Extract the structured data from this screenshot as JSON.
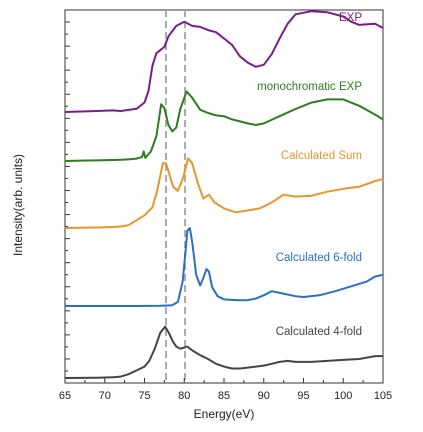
{
  "chart_data": {
    "type": "line",
    "xlabel": "Energy(eV)",
    "ylabel": "Intensity(arb. units)",
    "xlim": [
      65,
      105
    ],
    "xticks": [
      65,
      70,
      75,
      80,
      85,
      90,
      95,
      100,
      105
    ],
    "y_tick_labels_shown": false,
    "grid": false,
    "reference_lines_x": [
      77.7,
      80.1
    ],
    "reference_line_color": "#aaaaaa",
    "stacked_offsets": true,
    "series": [
      {
        "name": "EXP",
        "color": "#7a1d8c",
        "baseline": 0.0,
        "points": [
          [
            65,
            0.0
          ],
          [
            67,
            0.005
          ],
          [
            69,
            0.01
          ],
          [
            71,
            0.015
          ],
          [
            72,
            0.01
          ],
          [
            73,
            0.02
          ],
          [
            74,
            0.03
          ],
          [
            75,
            0.09
          ],
          [
            75.5,
            0.2
          ],
          [
            76,
            0.44
          ],
          [
            76.5,
            0.56
          ],
          [
            77,
            0.59
          ],
          [
            77.5,
            0.62
          ],
          [
            78,
            0.72
          ],
          [
            78.5,
            0.77
          ],
          [
            79,
            0.82
          ],
          [
            80,
            0.86
          ],
          [
            81,
            0.82
          ],
          [
            82,
            0.81
          ],
          [
            83,
            0.78
          ],
          [
            84,
            0.76
          ],
          [
            85,
            0.7
          ],
          [
            86,
            0.64
          ],
          [
            87,
            0.53
          ],
          [
            88,
            0.47
          ],
          [
            89,
            0.43
          ],
          [
            90,
            0.45
          ],
          [
            91,
            0.55
          ],
          [
            92,
            0.7
          ],
          [
            93,
            0.84
          ],
          [
            94,
            0.93
          ],
          [
            96,
            0.96
          ],
          [
            98,
            0.95
          ],
          [
            100,
            0.91
          ],
          [
            101,
            0.86
          ],
          [
            102,
            0.83
          ],
          [
            104,
            0.84
          ],
          [
            105,
            0.8
          ]
        ]
      },
      {
        "name": "monochromatic EXP",
        "color": "#2e7d1e",
        "baseline": 0.0,
        "points": [
          [
            65,
            0.0
          ],
          [
            67,
            0.005
          ],
          [
            69,
            0.008
          ],
          [
            71,
            0.012
          ],
          [
            72,
            0.015
          ],
          [
            73,
            0.02
          ],
          [
            74,
            0.03
          ],
          [
            74.7,
            0.05
          ],
          [
            74.9,
            0.12
          ],
          [
            75.1,
            0.04
          ],
          [
            75.8,
            0.12
          ],
          [
            76.5,
            0.31
          ],
          [
            77.1,
            0.71
          ],
          [
            77.5,
            0.66
          ],
          [
            78,
            0.45
          ],
          [
            78.5,
            0.37
          ],
          [
            79,
            0.42
          ],
          [
            79.5,
            0.65
          ],
          [
            80.3,
            0.87
          ],
          [
            81,
            0.79
          ],
          [
            82,
            0.64
          ],
          [
            83,
            0.6
          ],
          [
            84,
            0.57
          ],
          [
            85,
            0.56
          ],
          [
            86,
            0.52
          ],
          [
            88,
            0.47
          ],
          [
            89,
            0.45
          ],
          [
            90,
            0.47
          ],
          [
            92,
            0.56
          ],
          [
            94,
            0.65
          ],
          [
            96,
            0.73
          ],
          [
            98,
            0.77
          ],
          [
            100,
            0.77
          ],
          [
            102,
            0.69
          ],
          [
            104,
            0.58
          ],
          [
            105,
            0.52
          ]
        ]
      },
      {
        "name": "Calculated Sum",
        "color": "#e8962a",
        "baseline": 0.0,
        "points": [
          [
            65,
            0.0
          ],
          [
            67,
            0.002
          ],
          [
            69,
            0.005
          ],
          [
            70,
            0.008
          ],
          [
            71,
            0.01
          ],
          [
            72,
            0.015
          ],
          [
            73,
            0.03
          ],
          [
            74,
            0.08
          ],
          [
            75,
            0.13
          ],
          [
            76,
            0.21
          ],
          [
            76.6,
            0.38
          ],
          [
            77.3,
            0.66
          ],
          [
            77.7,
            0.66
          ],
          [
            78.1,
            0.56
          ],
          [
            78.6,
            0.42
          ],
          [
            79.2,
            0.38
          ],
          [
            79.8,
            0.5
          ],
          [
            80.5,
            0.71
          ],
          [
            81,
            0.66
          ],
          [
            81.7,
            0.46
          ],
          [
            82.4,
            0.3
          ],
          [
            83.1,
            0.34
          ],
          [
            83.8,
            0.26
          ],
          [
            85,
            0.2
          ],
          [
            86.5,
            0.16
          ],
          [
            88,
            0.18
          ],
          [
            89.5,
            0.2
          ],
          [
            91,
            0.26
          ],
          [
            92.5,
            0.34
          ],
          [
            94,
            0.32
          ],
          [
            96,
            0.33
          ],
          [
            98,
            0.37
          ],
          [
            100,
            0.4
          ],
          [
            102,
            0.42
          ],
          [
            104,
            0.48
          ],
          [
            105,
            0.5
          ]
        ]
      },
      {
        "name": "Calculated 6-fold",
        "color": "#2b6fc2",
        "baseline": 0.0,
        "points": [
          [
            65,
            0.0
          ],
          [
            70,
            0.0
          ],
          [
            74,
            0.0
          ],
          [
            77,
            0.003
          ],
          [
            78.5,
            0.01
          ],
          [
            79.2,
            0.05
          ],
          [
            79.8,
            0.3
          ],
          [
            80.1,
            0.6
          ],
          [
            80.4,
            0.92
          ],
          [
            80.7,
            0.95
          ],
          [
            81,
            0.78
          ],
          [
            81.5,
            0.38
          ],
          [
            82,
            0.25
          ],
          [
            82.4,
            0.34
          ],
          [
            82.8,
            0.45
          ],
          [
            83.1,
            0.42
          ],
          [
            83.5,
            0.23
          ],
          [
            84.2,
            0.12
          ],
          [
            85,
            0.08
          ],
          [
            86,
            0.075
          ],
          [
            87,
            0.07
          ],
          [
            88,
            0.072
          ],
          [
            89,
            0.09
          ],
          [
            90,
            0.13
          ],
          [
            91,
            0.18
          ],
          [
            92,
            0.16
          ],
          [
            93,
            0.14
          ],
          [
            94,
            0.12
          ],
          [
            95,
            0.11
          ],
          [
            97,
            0.13
          ],
          [
            99,
            0.18
          ],
          [
            101,
            0.24
          ],
          [
            103,
            0.3
          ],
          [
            104,
            0.36
          ],
          [
            105,
            0.38
          ]
        ]
      },
      {
        "name": "Calculated 4-fold",
        "color": "#444444",
        "baseline": 0.0,
        "points": [
          [
            65,
            0.0
          ],
          [
            67,
            0.001
          ],
          [
            69,
            0.003
          ],
          [
            71,
            0.008
          ],
          [
            72,
            0.015
          ],
          [
            73,
            0.04
          ],
          [
            74,
            0.08
          ],
          [
            75,
            0.12
          ],
          [
            75.6,
            0.18
          ],
          [
            76.3,
            0.31
          ],
          [
            77,
            0.48
          ],
          [
            77.6,
            0.54
          ],
          [
            78.1,
            0.47
          ],
          [
            78.6,
            0.38
          ],
          [
            79,
            0.33
          ],
          [
            79.5,
            0.31
          ],
          [
            80,
            0.32
          ],
          [
            80.4,
            0.33
          ],
          [
            81,
            0.29
          ],
          [
            82,
            0.24
          ],
          [
            83,
            0.2
          ],
          [
            84,
            0.15
          ],
          [
            85,
            0.12
          ],
          [
            86,
            0.1
          ],
          [
            87,
            0.1
          ],
          [
            88,
            0.11
          ],
          [
            89,
            0.12
          ],
          [
            90,
            0.13
          ],
          [
            91,
            0.15
          ],
          [
            92,
            0.17
          ],
          [
            93,
            0.18
          ],
          [
            94,
            0.17
          ],
          [
            96,
            0.17
          ],
          [
            98,
            0.18
          ],
          [
            100,
            0.19
          ],
          [
            102,
            0.2
          ],
          [
            104,
            0.23
          ],
          [
            105,
            0.23
          ]
        ]
      }
    ]
  }
}
